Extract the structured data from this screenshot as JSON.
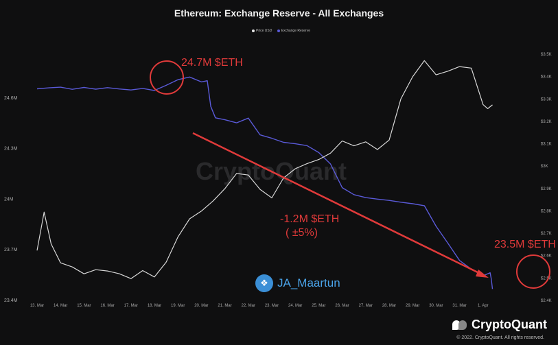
{
  "chart_data": {
    "type": "line",
    "title": "Ethereum: Exchange Reserve - All Exchanges",
    "legend": [
      "Price USD",
      "Exchange Reserve"
    ],
    "x_ticks": [
      "13. Mar",
      "14. Mar",
      "15. Mar",
      "16. Mar",
      "17. Mar",
      "18. Mar",
      "19. Mar",
      "20. Mar",
      "21. Mar",
      "22. Mar",
      "23. Mar",
      "24. Mar",
      "25. Mar",
      "26. Mar",
      "27. Mar",
      "28. Mar",
      "29. Mar",
      "30. Mar",
      "31. Mar",
      "1. Apr"
    ],
    "y_left_ticks": [
      "24.6M",
      "24.3M",
      "24M",
      "23.7M",
      "23.4M"
    ],
    "y_left_range": [
      23.4,
      24.9
    ],
    "y_right_ticks": [
      "$3.5K",
      "$3.4K",
      "$3.3K",
      "$3.2K",
      "$3.1K",
      "$3K",
      "$2.9K",
      "$2.8K",
      "$2.7K",
      "$2.6K",
      "$2.5K",
      "$2.4K"
    ],
    "y_right_range": [
      2.4,
      3.5
    ],
    "series": [
      {
        "name": "Exchange Reserve",
        "color": "#5a5ad8",
        "axis": "left",
        "x": [
          0,
          0.5,
          1,
          1.5,
          2,
          2.5,
          3,
          3.5,
          4,
          4.5,
          5,
          5.5,
          6,
          6.5,
          7,
          7.25,
          7.4,
          7.6,
          8,
          8.5,
          9,
          9.5,
          10,
          10.5,
          11,
          11.5,
          12,
          12.5,
          13,
          13.5,
          14,
          14.5,
          15,
          15.5,
          16,
          16.5,
          17,
          17.5,
          18,
          18.5,
          19,
          19.3,
          19.35,
          19.4
        ],
        "y": [
          24.65,
          24.66,
          24.66,
          24.65,
          24.66,
          24.65,
          24.66,
          24.65,
          24.64,
          24.65,
          24.64,
          24.67,
          24.7,
          24.72,
          24.69,
          24.7,
          24.55,
          24.48,
          24.47,
          24.45,
          24.48,
          24.38,
          24.36,
          24.33,
          24.32,
          24.31,
          24.27,
          24.2,
          24.06,
          24.02,
          24.01,
          24.0,
          23.99,
          23.98,
          23.97,
          23.96,
          23.84,
          23.74,
          23.63,
          23.58,
          23.54,
          23.56,
          23.52,
          23.46
        ]
      },
      {
        "name": "Price USD",
        "color": "#d8d8d8",
        "axis": "right",
        "x": [
          0,
          0.3,
          0.6,
          1,
          1.5,
          2,
          2.5,
          3,
          3.5,
          4,
          4.5,
          5,
          5.5,
          6,
          6.5,
          7,
          7.5,
          8,
          8.5,
          9,
          9.5,
          10,
          10.5,
          11,
          11.5,
          12,
          12.5,
          13,
          13.5,
          14,
          14.5,
          15,
          15.5,
          16,
          16.5,
          17,
          17.5,
          18,
          18.5,
          19,
          19.2,
          19.4
        ],
        "y": [
          2.62,
          2.8,
          2.65,
          2.57,
          2.55,
          2.52,
          2.54,
          2.53,
          2.51,
          2.49,
          2.53,
          2.5,
          2.56,
          2.68,
          2.76,
          2.8,
          2.85,
          2.9,
          2.97,
          2.96,
          2.9,
          2.86,
          2.95,
          2.98,
          3.0,
          3.02,
          3.05,
          3.1,
          3.08,
          3.1,
          3.08,
          3.12,
          3.3,
          3.4,
          3.47,
          3.41,
          3.43,
          3.45,
          3.43,
          3.27,
          3.25,
          3.27
        ]
      }
    ],
    "annotations": [
      {
        "text": "24.7M $ETH",
        "color": "#e03a3a"
      },
      {
        "text": "-1.2M $ETH",
        "color": "#e03a3a"
      },
      {
        "text": "( ±5%)",
        "color": "#e03a3a"
      },
      {
        "text": "23.5M $ETH",
        "color": "#e03a3a"
      }
    ],
    "watermark": "CryptoQuant"
  },
  "twitter": {
    "handle": "JA_Maartun",
    "icon": "twitter-bird-icon"
  },
  "brand": {
    "name": "CryptoQuant",
    "icon": "cryptoquant-logo-icon"
  },
  "copyright": "© 2022. CryptoQuant. All rights reserved."
}
